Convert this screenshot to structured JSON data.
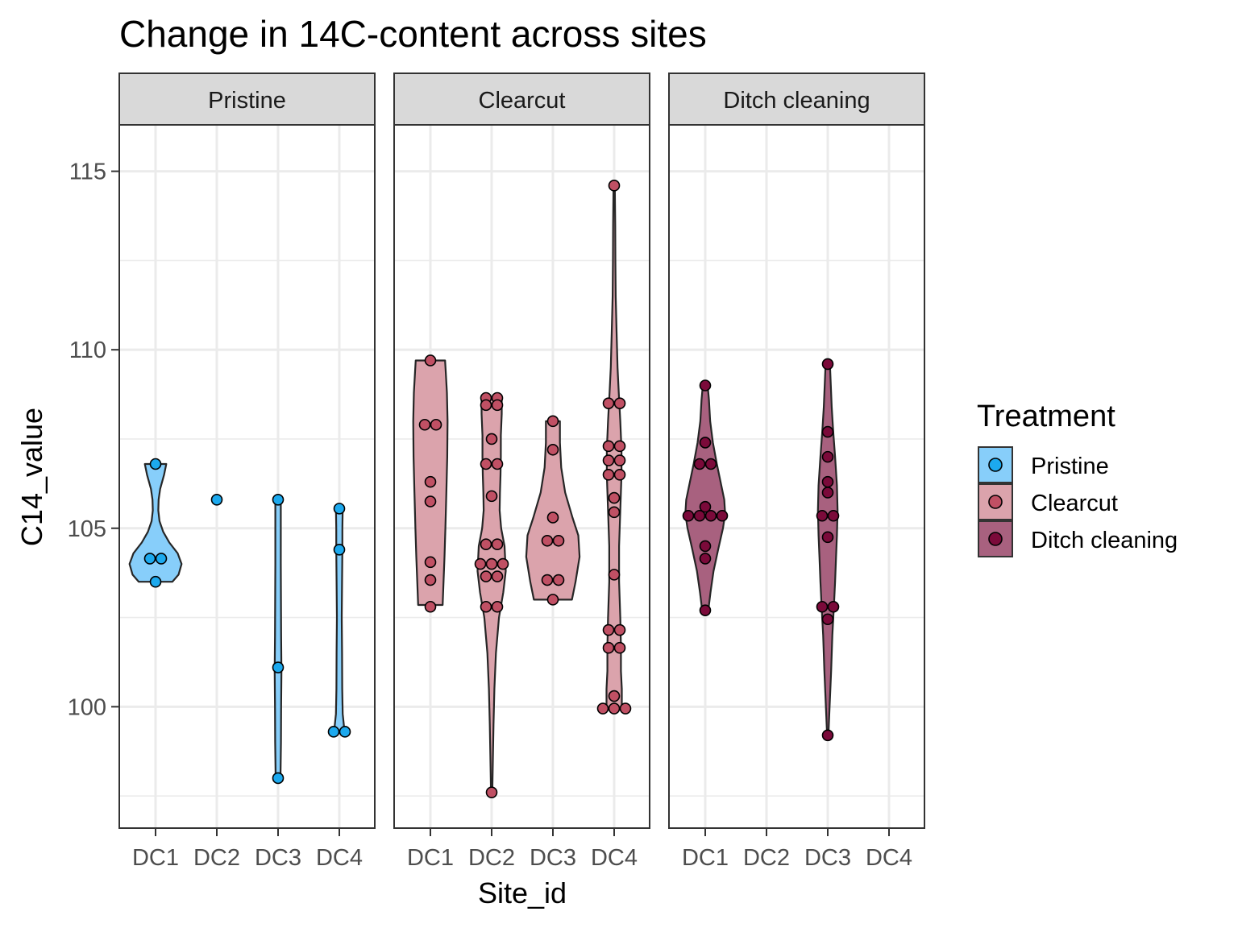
{
  "chart_data": {
    "type": "violin",
    "title": "Change in 14C-content across sites",
    "xlabel": "Site_id",
    "ylabel": "C14_value",
    "ylim": [
      96.6,
      116.3
    ],
    "yticks": [
      100,
      105,
      110,
      115
    ],
    "grid": true,
    "categories": [
      "DC1",
      "DC2",
      "DC3",
      "DC4"
    ],
    "legend": {
      "title": "Treatment",
      "position": "right",
      "items": [
        "Pristine",
        "Clearcut",
        "Ditch cleaning"
      ]
    },
    "facets": [
      {
        "name": "Pristine",
        "fill": "#87CEFA",
        "point_color": "#1CA9EE",
        "groups": [
          {
            "site": "DC1",
            "points": [
              106.8,
              104.15,
              104.15,
              103.5
            ],
            "violin": [
              [
                103.5,
                0.55
              ],
              [
                103.7,
                0.75
              ],
              [
                104.0,
                0.85
              ],
              [
                104.3,
                0.72
              ],
              [
                104.6,
                0.45
              ],
              [
                104.9,
                0.25
              ],
              [
                105.2,
                0.13
              ],
              [
                105.5,
                0.09
              ],
              [
                105.8,
                0.1
              ],
              [
                106.1,
                0.15
              ],
              [
                106.5,
                0.28
              ],
              [
                106.8,
                0.35
              ]
            ]
          },
          {
            "site": "DC2",
            "points": [
              105.8
            ],
            "violin": []
          },
          {
            "site": "DC3",
            "points": [
              105.8,
              101.1,
              98.0
            ],
            "violin": [
              [
                98.0,
                0.08
              ],
              [
                99.0,
                0.095
              ],
              [
                100.0,
                0.1
              ],
              [
                101.0,
                0.11
              ],
              [
                102.0,
                0.1
              ],
              [
                103.0,
                0.095
              ],
              [
                104.0,
                0.09
              ],
              [
                105.0,
                0.09
              ],
              [
                105.8,
                0.09
              ]
            ]
          },
          {
            "site": "DC4",
            "points": [
              105.55,
              104.4,
              99.3,
              99.3
            ],
            "violin": [
              [
                99.3,
                0.17
              ],
              [
                99.8,
                0.11
              ],
              [
                100.5,
                0.095
              ],
              [
                101.5,
                0.09
              ],
              [
                102.5,
                0.08
              ],
              [
                103.5,
                0.09
              ],
              [
                104.4,
                0.1
              ],
              [
                105.0,
                0.1
              ],
              [
                105.55,
                0.11
              ]
            ]
          }
        ]
      },
      {
        "name": "Clearcut",
        "fill": "#DBA3AC",
        "point_color": "#C05064",
        "groups": [
          {
            "site": "DC1",
            "points": [
              109.7,
              107.9,
              107.9,
              106.3,
              105.75,
              104.05,
              103.55,
              102.8
            ],
            "violin": [
              [
                102.85,
                0.4
              ],
              [
                103.5,
                0.43
              ],
              [
                104.2,
                0.46
              ],
              [
                105.0,
                0.49
              ],
              [
                106.0,
                0.52
              ],
              [
                107.0,
                0.55
              ],
              [
                108.0,
                0.56
              ],
              [
                108.8,
                0.54
              ],
              [
                109.4,
                0.5
              ],
              [
                109.7,
                0.48
              ]
            ]
          },
          {
            "site": "DC2",
            "points": [
              108.65,
              108.65,
              108.45,
              108.45,
              107.5,
              106.8,
              106.8,
              105.9,
              104.55,
              104.55,
              104.0,
              104.0,
              104.0,
              103.65,
              103.65,
              102.8,
              102.8,
              97.6
            ],
            "violin": [
              [
                97.6,
                0.02
              ],
              [
                98.5,
                0.04
              ],
              [
                99.5,
                0.06
              ],
              [
                100.5,
                0.09
              ],
              [
                101.5,
                0.14
              ],
              [
                102.5,
                0.24
              ],
              [
                103.2,
                0.38
              ],
              [
                103.8,
                0.46
              ],
              [
                104.5,
                0.42
              ],
              [
                105.0,
                0.31
              ],
              [
                105.5,
                0.26
              ],
              [
                106.0,
                0.27
              ],
              [
                106.5,
                0.29
              ],
              [
                107.0,
                0.3
              ],
              [
                107.6,
                0.3
              ],
              [
                108.2,
                0.33
              ],
              [
                108.65,
                0.33
              ]
            ]
          },
          {
            "site": "DC3",
            "points": [
              108.0,
              107.2,
              105.3,
              104.65,
              104.65,
              103.55,
              103.55,
              103.0
            ],
            "violin": [
              [
                103.0,
                0.62
              ],
              [
                103.5,
                0.74
              ],
              [
                104.2,
                0.87
              ],
              [
                104.8,
                0.83
              ],
              [
                105.3,
                0.64
              ],
              [
                106.0,
                0.4
              ],
              [
                106.7,
                0.27
              ],
              [
                107.4,
                0.23
              ],
              [
                108.0,
                0.23
              ]
            ]
          },
          {
            "site": "DC4",
            "points": [
              114.6,
              108.5,
              108.5,
              107.3,
              107.3,
              106.9,
              106.9,
              106.5,
              106.5,
              105.85,
              105.45,
              103.7,
              102.15,
              102.15,
              101.65,
              101.65,
              100.3,
              99.95,
              99.95,
              99.95
            ],
            "violin": [
              [
                99.95,
                0.25
              ],
              [
                100.5,
                0.25
              ],
              [
                101.0,
                0.22
              ],
              [
                101.7,
                0.22
              ],
              [
                102.5,
                0.2
              ],
              [
                103.5,
                0.16
              ],
              [
                104.5,
                0.16
              ],
              [
                105.5,
                0.2
              ],
              [
                106.5,
                0.24
              ],
              [
                107.2,
                0.24
              ],
              [
                108.0,
                0.2
              ],
              [
                108.8,
                0.15
              ],
              [
                109.5,
                0.11
              ],
              [
                110.5,
                0.08
              ],
              [
                111.5,
                0.05
              ],
              [
                112.5,
                0.04
              ],
              [
                113.5,
                0.035
              ],
              [
                114.6,
                0.02
              ]
            ]
          }
        ]
      },
      {
        "name": "Ditch cleaning",
        "fill": "#A8617F",
        "point_color": "#7B0A3A",
        "groups": [
          {
            "site": "DC1",
            "points": [
              109.0,
              107.4,
              106.8,
              106.8,
              105.6,
              105.35,
              105.35,
              105.35,
              105.35,
              104.5,
              104.15,
              102.7
            ],
            "violin": [
              [
                102.7,
                0.1
              ],
              [
                103.2,
                0.17
              ],
              [
                103.8,
                0.27
              ],
              [
                104.4,
                0.42
              ],
              [
                105.0,
                0.58
              ],
              [
                105.4,
                0.65
              ],
              [
                105.8,
                0.62
              ],
              [
                106.3,
                0.5
              ],
              [
                106.8,
                0.38
              ],
              [
                107.4,
                0.25
              ],
              [
                108.0,
                0.16
              ],
              [
                108.6,
                0.12
              ],
              [
                109.0,
                0.08
              ]
            ]
          },
          {
            "site": "DC3",
            "points": [
              109.6,
              107.7,
              107.0,
              106.3,
              106.0,
              105.35,
              105.35,
              104.75,
              102.8,
              102.8,
              102.45,
              99.2
            ],
            "violin": [
              [
                99.2,
                0.02
              ],
              [
                100.0,
                0.06
              ],
              [
                101.0,
                0.11
              ],
              [
                102.0,
                0.15
              ],
              [
                102.8,
                0.2
              ],
              [
                103.5,
                0.24
              ],
              [
                104.2,
                0.27
              ],
              [
                104.8,
                0.3
              ],
              [
                105.5,
                0.32
              ],
              [
                106.2,
                0.3
              ],
              [
                107.0,
                0.24
              ],
              [
                107.7,
                0.18
              ],
              [
                108.4,
                0.13
              ],
              [
                109.0,
                0.1
              ],
              [
                109.6,
                0.07
              ]
            ]
          }
        ]
      }
    ]
  }
}
